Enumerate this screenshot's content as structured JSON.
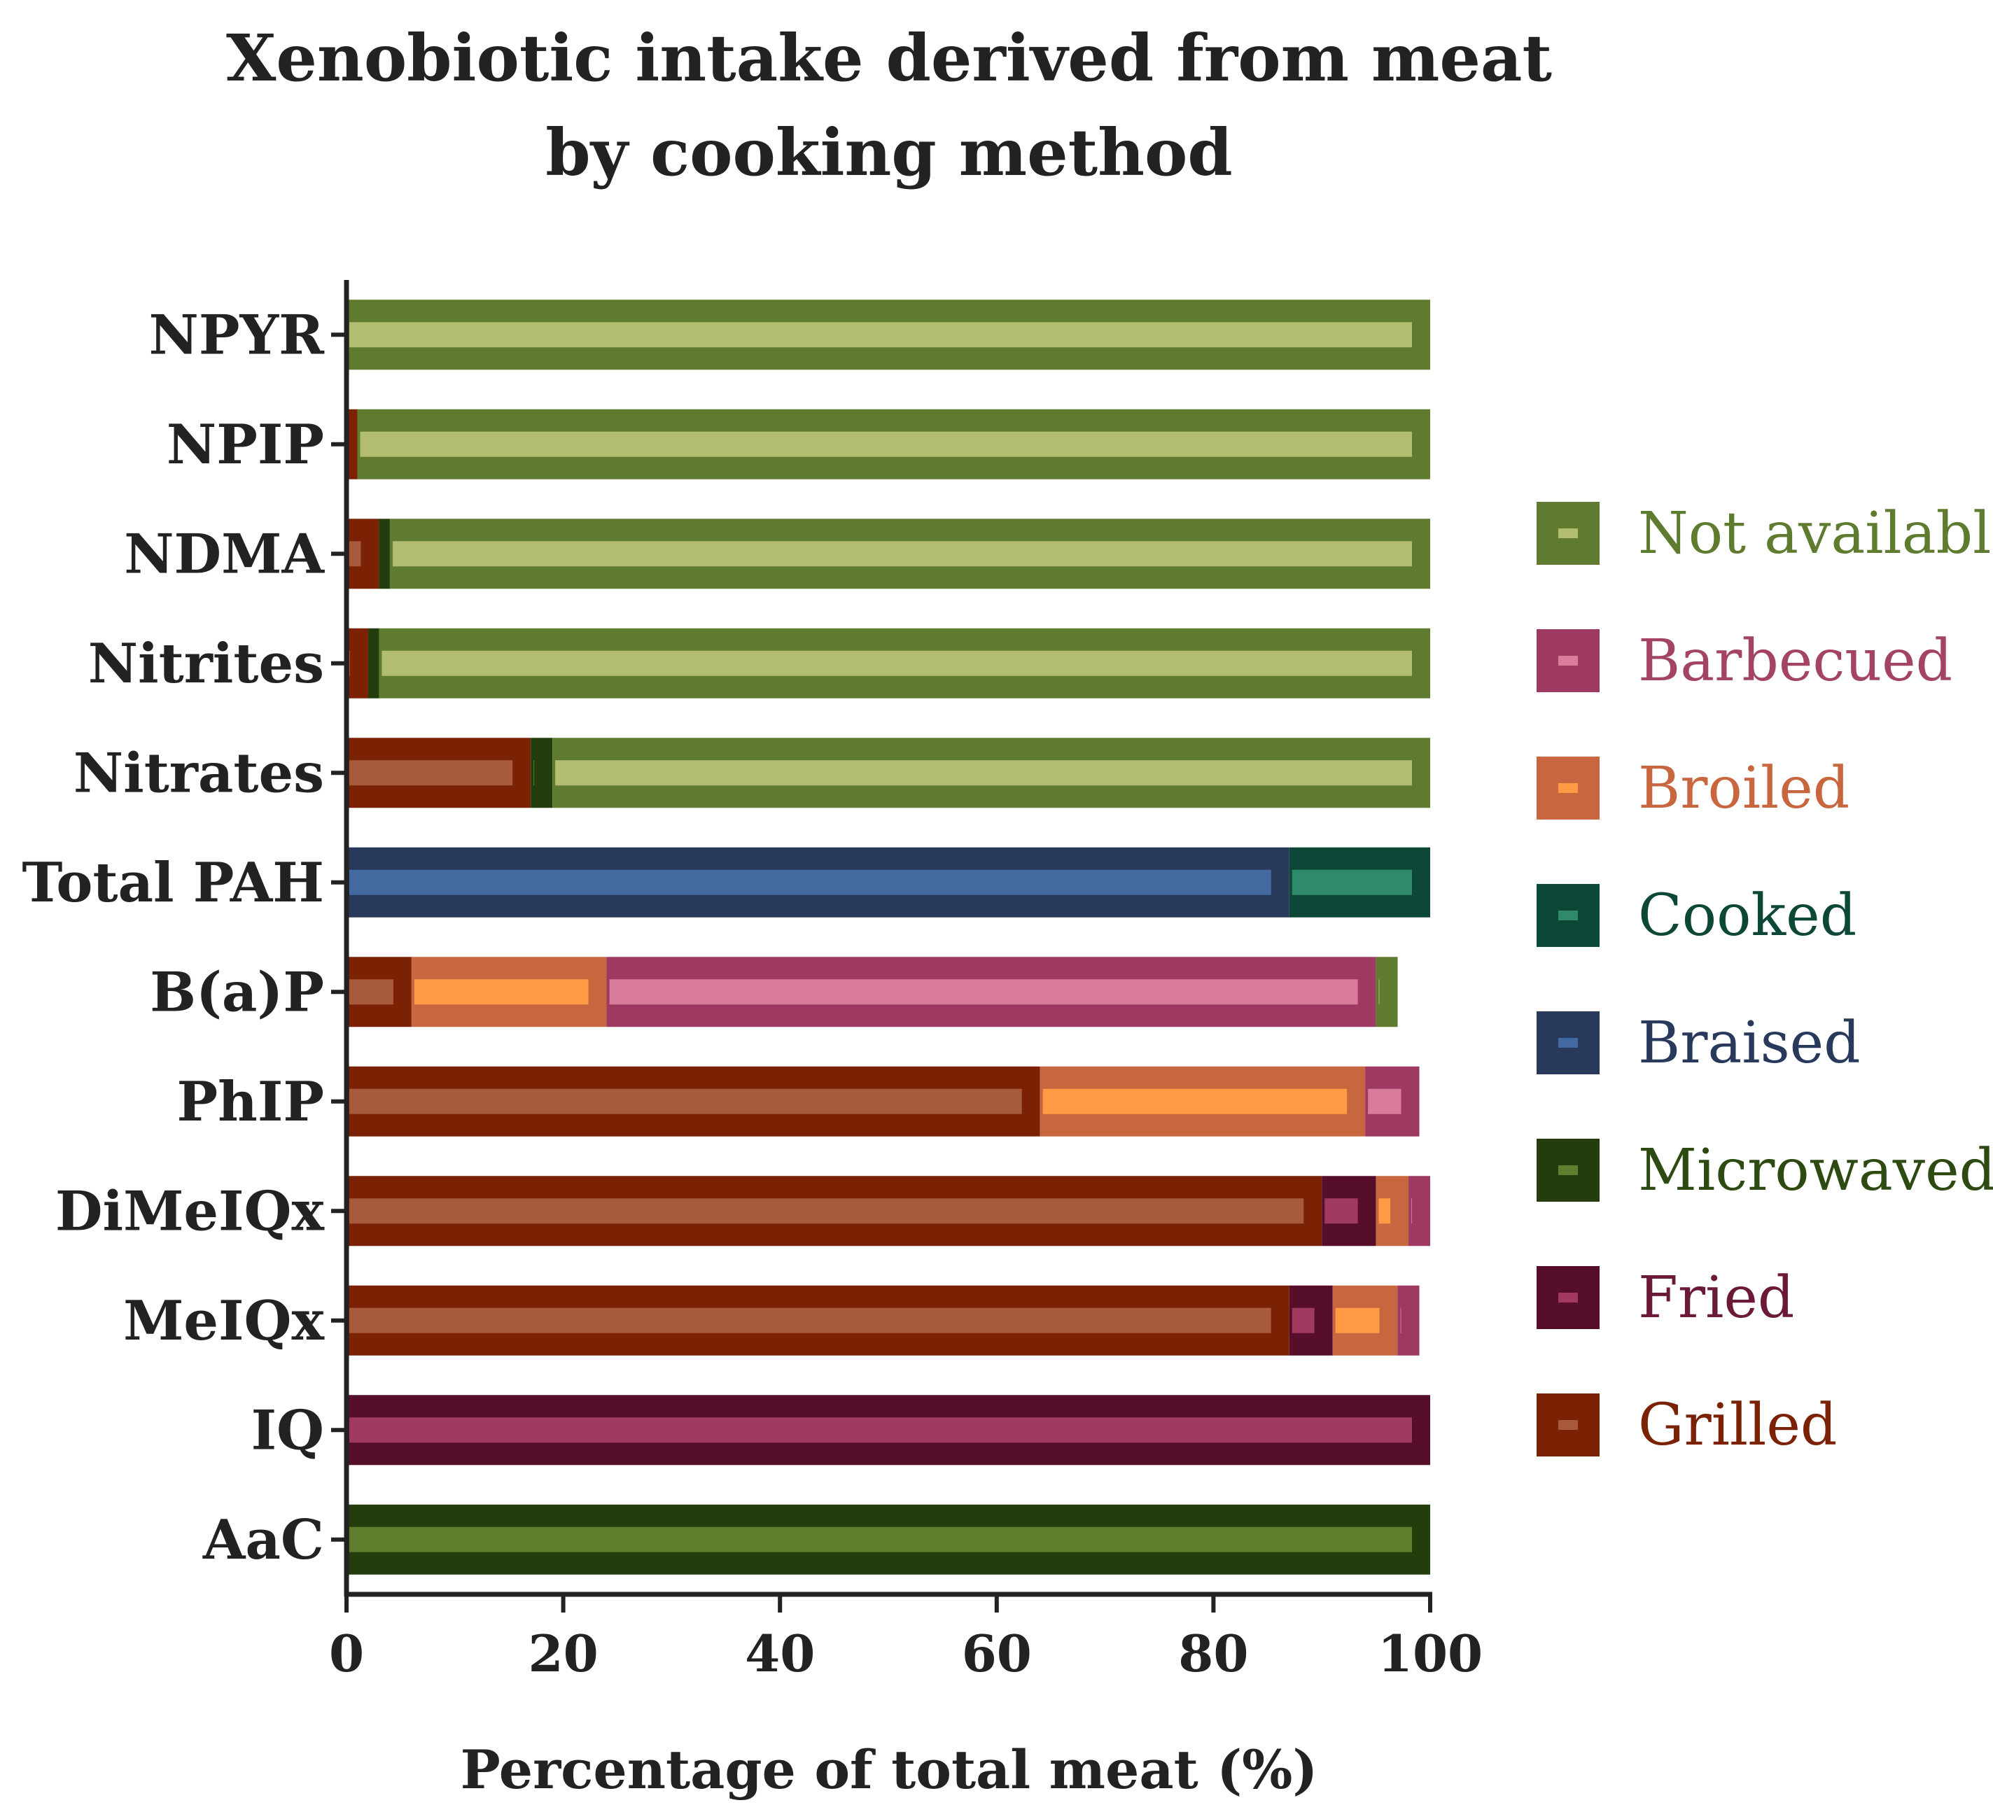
{
  "chart_data": {
    "type": "bar",
    "orientation": "horizontal",
    "stacked": true,
    "title": "Xenobiotic intake derived from meat by cooking method",
    "title_lines": [
      "Xenobiotic intake derived from meat",
      "by cooking method"
    ],
    "xlabel": "Percentage of total meat (%)",
    "ylabel": "",
    "xlim": [
      0,
      100
    ],
    "xticks": [
      "0",
      "20",
      "40",
      "60",
      "80",
      "100"
    ],
    "grid": false,
    "legend_position": "right",
    "categories": [
      "NPYR",
      "NPIP",
      "NDMA",
      "Nitrites",
      "Nitrates",
      "Total PAH",
      "B(a)P",
      "PhIP",
      "DiMeIQx",
      "MeIQx",
      "IQ",
      "AaC"
    ],
    "legend_order": [
      "Not available",
      "Barbecued",
      "Broiled",
      "Cooked",
      "Braised",
      "Microwaved",
      "Fried",
      "Grilled"
    ],
    "stack_order": [
      "Grilled",
      "Fried",
      "Microwaved",
      "Broiled",
      "Barbecued",
      "Braised",
      "Cooked",
      "Not available"
    ],
    "series": [
      {
        "name": "Grilled",
        "values": [
          0,
          1,
          3,
          2,
          17,
          0,
          6,
          64,
          90,
          87,
          0,
          0
        ]
      },
      {
        "name": "Fried",
        "values": [
          0,
          0,
          0,
          0,
          0,
          0,
          0,
          0,
          5,
          4,
          100,
          0
        ]
      },
      {
        "name": "Microwaved",
        "values": [
          0,
          0,
          1,
          1,
          2,
          0,
          0,
          0,
          0,
          0,
          0,
          100
        ]
      },
      {
        "name": "Broiled",
        "values": [
          0,
          0,
          0,
          0,
          0,
          0,
          18,
          30,
          3,
          6,
          0,
          0
        ]
      },
      {
        "name": "Barbecued",
        "values": [
          0,
          0,
          0,
          0,
          0,
          0,
          71,
          5,
          2,
          2,
          0,
          0
        ]
      },
      {
        "name": "Braised",
        "values": [
          0,
          0,
          0,
          0,
          0,
          87,
          0,
          0,
          0,
          0,
          0,
          0
        ]
      },
      {
        "name": "Cooked",
        "values": [
          0,
          0,
          0,
          0,
          0,
          13,
          0,
          0,
          0,
          0,
          0,
          0
        ]
      },
      {
        "name": "Not available",
        "values": [
          100,
          99,
          96,
          97,
          81,
          0,
          2,
          0,
          0,
          0,
          0,
          0
        ]
      }
    ],
    "colors": {
      "Not available": {
        "outer": "#5e7b2f",
        "inner": "#b2bd72",
        "text": "#5e7b2f"
      },
      "Barbecued": {
        "outer": "#9e3a62",
        "inner": "#d97b9b",
        "text": "#a34466"
      },
      "Broiled": {
        "outer": "#c8673f",
        "inner": "#ff9a45",
        "text": "#c8673f"
      },
      "Cooked": {
        "outer": "#0d4738",
        "inner": "#2e8a6b",
        "text": "#0d4738"
      },
      "Braised": {
        "outer": "#28395c",
        "inner": "#426aa0",
        "text": "#28395c"
      },
      "Microwaved": {
        "outer": "#233d0d",
        "inner": "#5f7e2e",
        "text": "#2d4a12"
      },
      "Fried": {
        "outer": "#560e2b",
        "inner": "#a03a60",
        "text": "#6a1a38"
      },
      "Grilled": {
        "outer": "#7a2203",
        "inner": "#a85a3d",
        "text": "#7a2203"
      }
    }
  }
}
